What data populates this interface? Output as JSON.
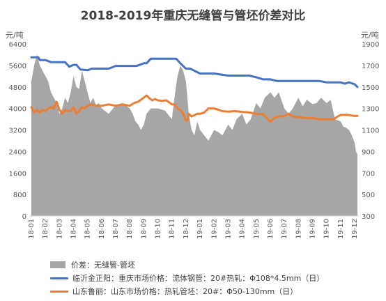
{
  "chart_data": {
    "type": "line",
    "title": "2018-2019年重庆无缝管与管坯价差对比",
    "y_left": {
      "label": "元/吨",
      "range": [
        0,
        6400
      ],
      "ticks": [
        0,
        800,
        1600,
        2400,
        3200,
        4000,
        4800,
        5600,
        6400
      ]
    },
    "y_right": {
      "label": "元/吨",
      "range": [
        300,
        1900
      ],
      "ticks": [
        300,
        500,
        700,
        900,
        1100,
        1300,
        1500,
        1700,
        1900
      ]
    },
    "x_ticks": [
      "18-01",
      "18-02",
      "18-03",
      "18-04",
      "18-05",
      "18-06",
      "18-07",
      "18-08",
      "18-09",
      "18-10",
      "18-11",
      "18-12",
      "19-01",
      "19-02",
      "19-03",
      "19-04",
      "19-05",
      "19-06",
      "19-07",
      "19-08",
      "19-09",
      "19-10",
      "19-11",
      "19-12"
    ],
    "grid": false,
    "legend_position": "bottom",
    "colors": {
      "spread": "#a6a6a6",
      "pipe": "#4472c4",
      "billet": "#ed7d31"
    },
    "series": [
      {
        "name": "价差：无缝管-管坯",
        "axis": "right",
        "kind": "area",
        "x": [
          0,
          0.2,
          0.4,
          0.6,
          0.8,
          1,
          1.2,
          1.4,
          1.6,
          1.8,
          2,
          2.2,
          2.4,
          2.6,
          2.8,
          3,
          3.2,
          3.4,
          3.6,
          3.8,
          4,
          4.2,
          4.4,
          4.6,
          4.8,
          5,
          5.5,
          6,
          6.5,
          7,
          7.2,
          7.4,
          7.6,
          7.8,
          8,
          8.2,
          8.5,
          9,
          9.5,
          10,
          10.2,
          10.4,
          10.6,
          10.8,
          11,
          11.2,
          11.4,
          11.6,
          11.8,
          12,
          12.3,
          12.6,
          13,
          13.3,
          13.6,
          14,
          14.3,
          14.6,
          15,
          15.3,
          15.6,
          16,
          16.3,
          16.6,
          17,
          17.3,
          17.6,
          18,
          18.3,
          18.6,
          19,
          19.3,
          19.6,
          20,
          20.3,
          20.6,
          21,
          21.3,
          21.6,
          22,
          22.2,
          22.4,
          22.6,
          22.8,
          23,
          23.1,
          23.2
        ],
        "values": [
          1550,
          1700,
          1800,
          1700,
          1650,
          1600,
          1550,
          1450,
          1400,
          1350,
          1250,
          1300,
          1400,
          1350,
          1450,
          1600,
          1500,
          1480,
          1650,
          1550,
          1450,
          1350,
          1400,
          1330,
          1350,
          1300,
          1250,
          1330,
          1350,
          1300,
          1250,
          1180,
          1150,
          1100,
          1150,
          1250,
          1300,
          1300,
          1280,
          1200,
          1420,
          1600,
          1700,
          1650,
          1550,
          1250,
          1100,
          1050,
          1180,
          1100,
          1050,
          1000,
          1100,
          1080,
          1050,
          1150,
          1100,
          1200,
          1250,
          1150,
          1200,
          1350,
          1300,
          1400,
          1450,
          1400,
          1450,
          1300,
          1250,
          1300,
          1400,
          1320,
          1380,
          1340,
          1350,
          1400,
          1350,
          1380,
          1200,
          1180,
          1130,
          1120,
          1100,
          1050,
          980,
          900,
          870
        ]
      },
      {
        "name": "临沂金正阳：重庆市场价格：流体钢管：20#热轧：Φ108*4.5mm（日）",
        "axis": "left",
        "kind": "line",
        "x": [
          0,
          0.5,
          0.6,
          1,
          1.4,
          1.8,
          2,
          2.2,
          2.4,
          2.7,
          3,
          3.2,
          3.5,
          4,
          4.3,
          5,
          5.5,
          6,
          6.5,
          7,
          7.5,
          8,
          8.2,
          8.5,
          9,
          9.5,
          10,
          10.3,
          10.6,
          11,
          11.3,
          11.6,
          12,
          12.5,
          13,
          14,
          15,
          15.5,
          16,
          16.5,
          17,
          17.5,
          18,
          18.3,
          18.6,
          19,
          19.5,
          20,
          20.5,
          21,
          21.5,
          22,
          22.3,
          22.6,
          23,
          23.2
        ],
        "values": [
          5900,
          5900,
          5800,
          5800,
          5720,
          5720,
          5720,
          5720,
          5720,
          5550,
          5620,
          5620,
          5450,
          5420,
          5480,
          5480,
          5480,
          5580,
          5580,
          5580,
          5580,
          5680,
          5680,
          5850,
          5850,
          5850,
          5850,
          5850,
          5680,
          5480,
          5480,
          5400,
          5300,
          5300,
          5300,
          5220,
          5220,
          5220,
          5160,
          5080,
          5080,
          5020,
          5020,
          5020,
          5020,
          5020,
          5020,
          5020,
          5020,
          4970,
          4970,
          4970,
          4920,
          4970,
          4900,
          4800
        ]
      },
      {
        "name": "山东鲁丽：山东市场价格：热轧管坯：20#：Φ50-130mm（日）",
        "axis": "left",
        "kind": "line",
        "x": [
          0,
          0.2,
          0.4,
          0.6,
          0.8,
          1,
          1.2,
          1.4,
          1.6,
          1.8,
          2,
          2.2,
          2.4,
          2.6,
          2.8,
          3,
          3.2,
          3.4,
          3.6,
          3.8,
          4,
          4.3,
          4.6,
          5,
          5.5,
          6,
          6.5,
          7,
          7.3,
          7.6,
          8,
          8.2,
          8.4,
          8.6,
          8.8,
          9,
          9.3,
          9.6,
          10,
          10.2,
          10.4,
          10.6,
          10.8,
          11,
          11.1,
          11.2,
          11.4,
          11.6,
          11.8,
          12,
          12.3,
          12.6,
          13,
          13.3,
          13.6,
          14,
          14.5,
          15,
          15.5,
          16,
          16.5,
          17,
          17.3,
          17.6,
          18,
          18.3,
          18.6,
          19,
          19.5,
          20,
          20.5,
          21,
          21.5,
          21.8,
          22,
          22.5,
          23,
          23.2
        ],
        "values": [
          4050,
          3850,
          3950,
          3850,
          3950,
          3900,
          4000,
          4050,
          4000,
          4250,
          3950,
          3800,
          3950,
          3900,
          3900,
          4050,
          3800,
          3900,
          4050,
          4000,
          4100,
          4150,
          4100,
          4100,
          4150,
          4100,
          4150,
          4100,
          4200,
          4250,
          4400,
          4480,
          4380,
          4300,
          4350,
          4300,
          4280,
          4300,
          4150,
          4150,
          4000,
          3950,
          3800,
          3550,
          3550,
          3800,
          3700,
          3750,
          3800,
          3800,
          3850,
          4000,
          4000,
          3950,
          3900,
          3880,
          3900,
          3870,
          3850,
          3800,
          3780,
          3500,
          3650,
          3700,
          3720,
          3800,
          3700,
          3680,
          3640,
          3640,
          3600,
          3600,
          3600,
          3700,
          3760,
          3760,
          3720,
          3720
        ]
      }
    ]
  }
}
